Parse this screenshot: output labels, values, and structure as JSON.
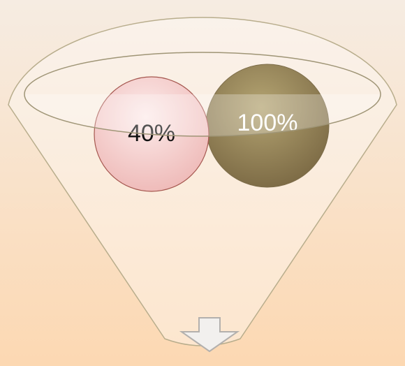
{
  "nodes": [
    {
      "label": "40%"
    },
    {
      "label": "100%"
    }
  ]
}
